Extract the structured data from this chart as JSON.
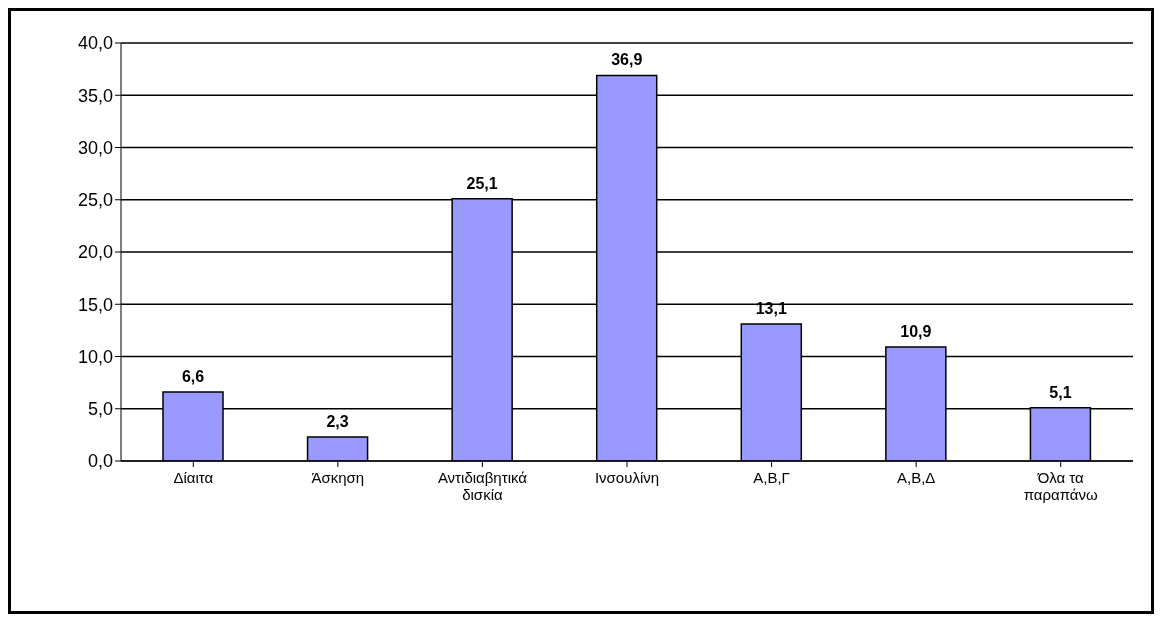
{
  "chart_data": {
    "type": "bar",
    "categories": [
      "Δίαιτα",
      "Άσκηση",
      "Αντιδιαβητικά δισκία",
      "Ινσουλίνη",
      "Α,Β,Γ",
      "Α,Β,Δ",
      "Όλα τα παραπάνω"
    ],
    "values": [
      6.6,
      2.3,
      25.1,
      36.9,
      13.1,
      10.9,
      5.1
    ],
    "value_labels": [
      "6,6",
      "2,3",
      "25,1",
      "36,9",
      "13,1",
      "10,9",
      "5,1"
    ],
    "color": "#9999ff",
    "ylim": [
      0,
      40
    ],
    "yticks": [
      {
        "value": 0,
        "label": "0,0"
      },
      {
        "value": 5,
        "label": "5,0"
      },
      {
        "value": 10,
        "label": "10,0"
      },
      {
        "value": 15,
        "label": "15,0"
      },
      {
        "value": 20,
        "label": "20,0"
      },
      {
        "value": 25,
        "label": "25,0"
      },
      {
        "value": 30,
        "label": "30,0"
      },
      {
        "value": 35,
        "label": "35,0"
      },
      {
        "value": 40,
        "label": "40,0"
      }
    ],
    "grid": "y",
    "legend": false
  }
}
